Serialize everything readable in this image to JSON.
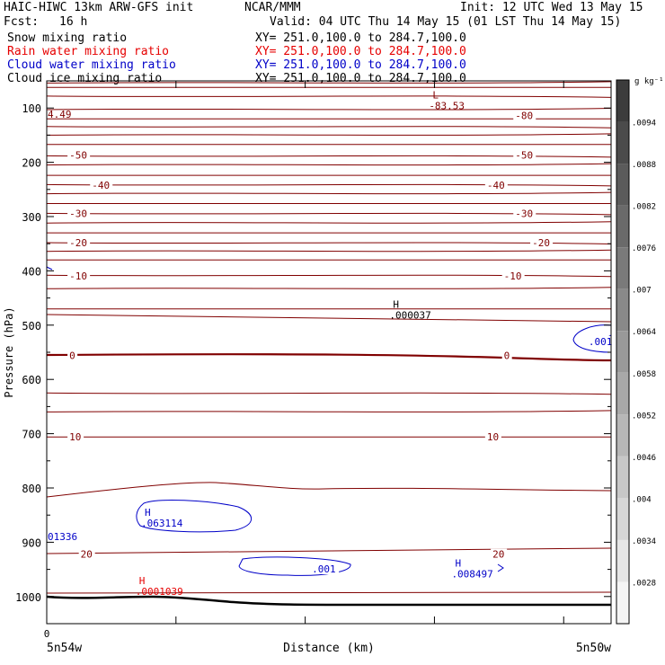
{
  "header": {
    "model": "HAIC-HIWC 13km ARW-GFS init",
    "org": "NCAR/MMM",
    "init": "Init: 12 UTC Wed 13 May 15",
    "fcst_label": "Fcst:",
    "fcst_value": "16 h",
    "valid": "Valid: 04 UTC Thu 14 May 15 (01 LST Thu 14 May 15)"
  },
  "fields": [
    {
      "name": "Snow mixing ratio",
      "xy": "XY= 251.0,100.0 to 284.7,100.0",
      "color": "#000000"
    },
    {
      "name": "Rain water mixing ratio",
      "xy": "XY= 251.0,100.0 to 284.7,100.0",
      "color": "#e60000"
    },
    {
      "name": "Cloud water mixing ratio",
      "xy": "XY= 251.0,100.0 to 284.7,100.0",
      "color": "#0000c8"
    },
    {
      "name": "Cloud ice mixing ratio",
      "xy": "XY= 251.0,100.0 to 284.7,100.0",
      "color": "#000000"
    }
  ],
  "chart_data": {
    "type": "contour",
    "xlabel": "Distance (km)",
    "ylabel": "Pressure (hPa)",
    "x_left_label": "5n54w",
    "x_right_label": "5n50w",
    "x_ticks": [
      "0"
    ],
    "y_ticks": [
      100,
      200,
      300,
      400,
      500,
      600,
      700,
      800,
      900,
      1000
    ],
    "ylim": [
      50,
      1050
    ],
    "temperature_contour_color": "#800000",
    "cloud_water_color": "#0000c8",
    "rain_color": "#e60000",
    "temperature_labels": [
      {
        "text": "-80",
        "x": 0.83,
        "p": 114
      },
      {
        "text": "-50",
        "x": 0.04,
        "p": 187
      },
      {
        "text": "-50",
        "x": 0.83,
        "p": 187
      },
      {
        "text": "-40",
        "x": 0.08,
        "p": 242
      },
      {
        "text": "-40",
        "x": 0.78,
        "p": 242
      },
      {
        "text": "-30",
        "x": 0.04,
        "p": 294
      },
      {
        "text": "-30",
        "x": 0.83,
        "p": 294
      },
      {
        "text": "-20",
        "x": 0.04,
        "p": 348
      },
      {
        "text": "-20",
        "x": 0.86,
        "p": 348
      },
      {
        "text": "-10",
        "x": 0.04,
        "p": 409
      },
      {
        "text": "-10",
        "x": 0.81,
        "p": 409
      },
      {
        "text": "0",
        "x": 0.04,
        "p": 556
      },
      {
        "text": "0",
        "x": 0.81,
        "p": 556
      },
      {
        "text": "10",
        "x": 0.04,
        "p": 706
      },
      {
        "text": "10",
        "x": 0.78,
        "p": 706
      },
      {
        "text": "20",
        "x": 0.06,
        "p": 922
      },
      {
        "text": "20",
        "x": 0.79,
        "p": 922
      }
    ],
    "extrema": [
      {
        "kind": "L",
        "value": "-83.53",
        "x": 0.69,
        "p": 92,
        "color": "#800000"
      },
      {
        "kind": "H",
        "value": ".000037",
        "x": 0.62,
        "p": 478,
        "color": "#000000"
      },
      {
        "kind": "H",
        "value": ".063114",
        "x": 0.18,
        "p": 861,
        "color": "#0000c8"
      },
      {
        "kind": "H",
        "value": ".008497",
        "x": 0.73,
        "p": 955,
        "color": "#0000c8"
      },
      {
        "kind": "H",
        "value": ".0001039",
        "x": 0.17,
        "p": 987,
        "color": "#e60000"
      }
    ],
    "edge_labels": [
      {
        "text": "4.49",
        "p": 111,
        "color": "#800000"
      },
      {
        "text": "01336",
        "p": 889,
        "color": "#0000c8"
      }
    ],
    "cloud_contour_labels": [
      {
        "text": ".001",
        "x": 0.47,
        "p": 949
      },
      {
        "text": ".001",
        "x": 0.96,
        "p": 530
      }
    ],
    "colorbar": {
      "units": "g kg⁻¹",
      "ticks": [
        ".0094",
        ".0088",
        ".0082",
        ".0076",
        ".007",
        ".0064",
        ".0058",
        ".0052",
        ".0046",
        ".004",
        ".0034",
        ".0028"
      ]
    }
  }
}
